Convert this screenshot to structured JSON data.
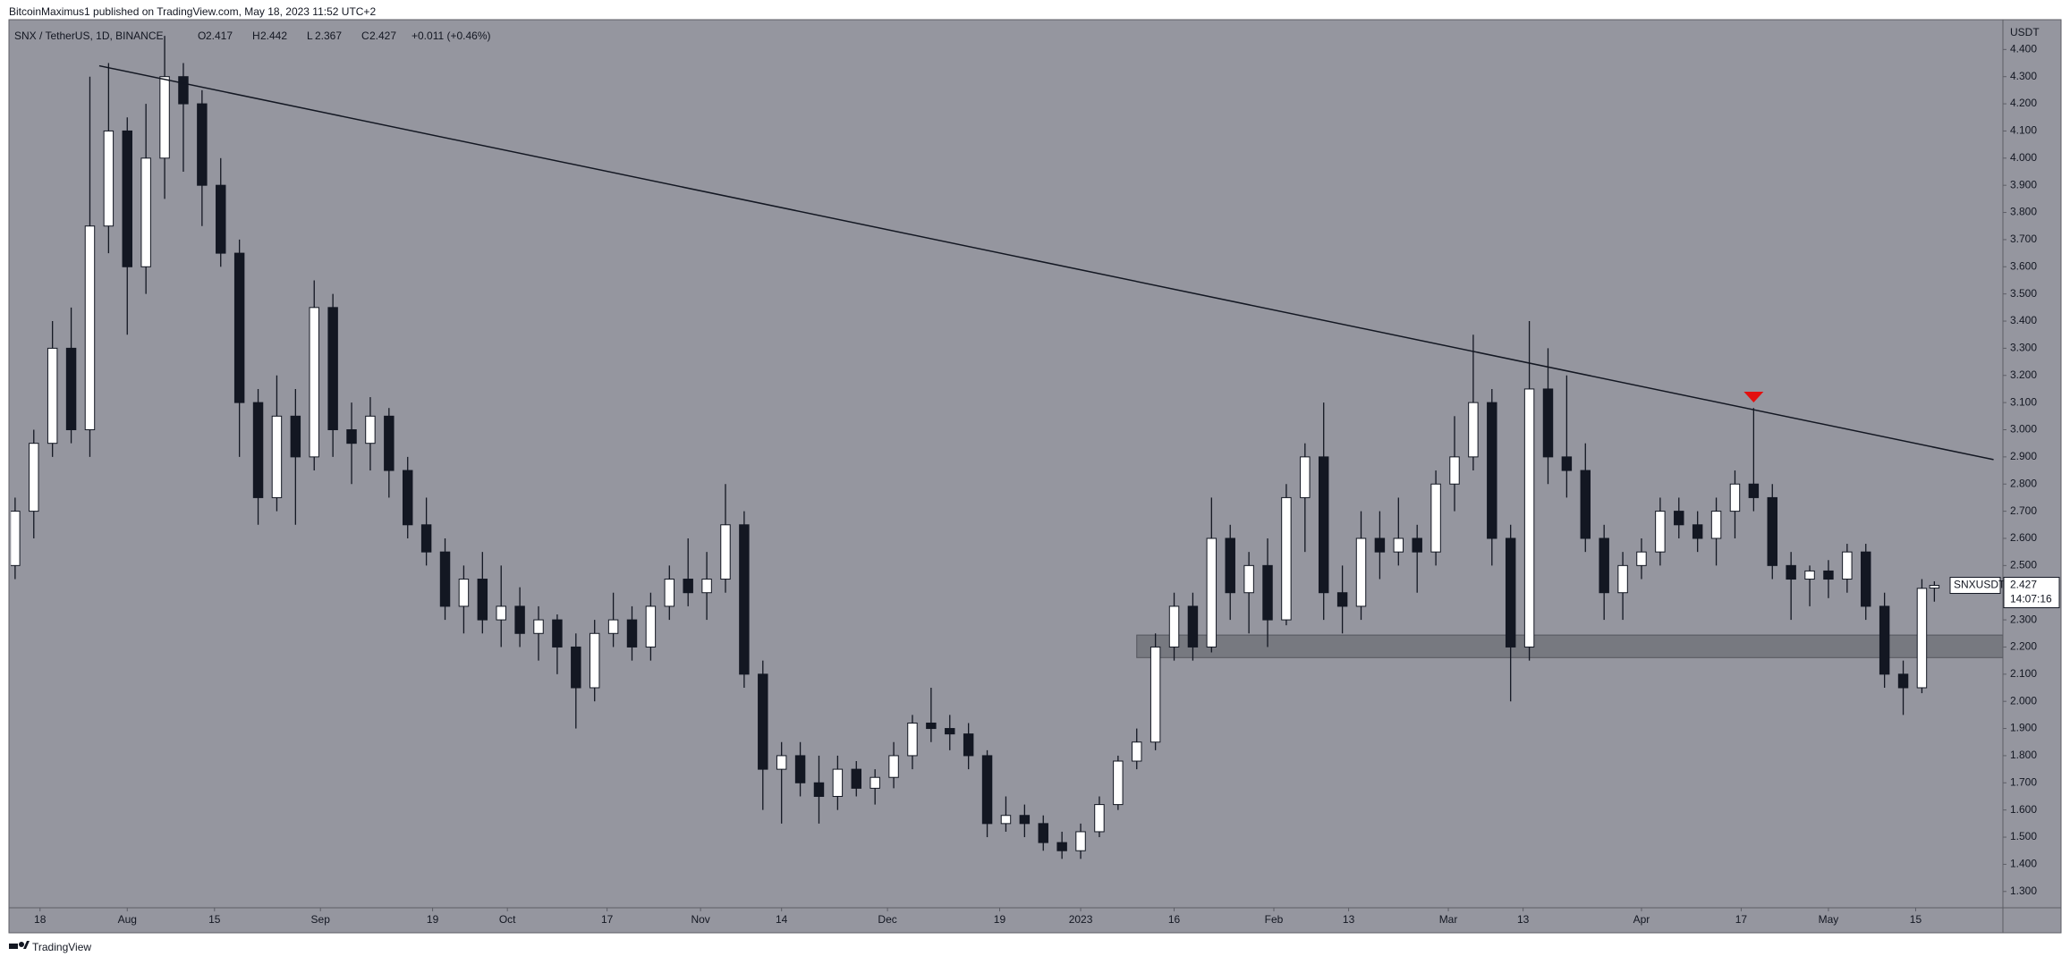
{
  "header": {
    "publisher": "BitcoinMaximus1 published on TradingView.com, May 18, 2023 11:52 UTC+2"
  },
  "footer": {
    "brand": "TradingView"
  },
  "chart_data": {
    "type": "candlestick",
    "title": "SNX / TetherUS, 1D, BINANCE",
    "ylabel": "USDT",
    "legend_values": [
      {
        "label": "O",
        "value": 2.417
      },
      {
        "label": "H",
        "value": 2.442
      },
      {
        "label": "L",
        "value": 2.367
      },
      {
        "label": "C",
        "value": 2.427
      }
    ],
    "change_label": "+0.011 (+0.46%)",
    "price_tag": {
      "symbol": "SNXUSDT",
      "value": 2.427,
      "countdown": "14:07:16"
    },
    "up_color": "#ffffff",
    "down_color": "#131722",
    "background": "#95969f",
    "grid": false,
    "x": [
      -4,
      -1,
      2,
      5,
      8,
      11,
      14,
      17,
      20,
      23,
      26,
      29,
      32,
      35,
      38,
      41,
      44,
      47,
      50,
      53,
      56,
      59,
      62,
      65,
      68,
      71,
      74,
      77,
      80,
      83,
      86,
      89,
      92,
      95,
      98,
      101,
      104,
      107,
      110,
      113,
      116,
      119,
      122,
      125,
      128,
      131,
      134,
      137,
      140,
      143,
      146,
      149,
      152,
      155,
      158,
      161,
      164,
      167,
      170,
      173,
      176,
      179,
      182,
      185,
      188,
      191,
      194,
      197,
      200,
      203,
      206,
      209,
      212,
      215,
      218,
      221,
      224,
      227,
      230,
      233,
      236,
      239,
      242,
      245,
      248,
      251,
      254,
      257,
      260,
      263,
      266,
      269,
      272,
      275,
      278,
      281,
      284,
      287,
      290,
      293,
      296,
      299,
      302,
      304
    ],
    "open": [
      2.5,
      2.7,
      2.95,
      3.3,
      3.0,
      3.75,
      4.1,
      3.6,
      4.0,
      4.3,
      4.2,
      3.9,
      3.65,
      3.1,
      2.75,
      3.05,
      2.9,
      3.45,
      3.0,
      2.95,
      3.05,
      2.85,
      2.65,
      2.55,
      2.35,
      2.45,
      2.3,
      2.35,
      2.25,
      2.3,
      2.2,
      2.05,
      2.25,
      2.3,
      2.2,
      2.35,
      2.45,
      2.4,
      2.45,
      2.65,
      2.1,
      1.75,
      1.8,
      1.7,
      1.65,
      1.75,
      1.68,
      1.72,
      1.8,
      1.92,
      1.9,
      1.88,
      1.8,
      1.55,
      1.58,
      1.55,
      1.48,
      1.45,
      1.52,
      1.62,
      1.78,
      1.85,
      2.2,
      2.35,
      2.2,
      2.6,
      2.4,
      2.5,
      2.3,
      2.75,
      2.9,
      2.4,
      2.35,
      2.6,
      2.55,
      2.6,
      2.55,
      2.8,
      2.9,
      3.1,
      2.6,
      2.2,
      3.15,
      2.9,
      2.85,
      2.6,
      2.4,
      2.5,
      2.55,
      2.7,
      2.65,
      2.6,
      2.7,
      2.8,
      2.75,
      2.5,
      2.45,
      2.48,
      2.45,
      2.55,
      2.35,
      2.1,
      2.05,
      2.417
    ],
    "high": [
      2.75,
      3.0,
      3.4,
      3.45,
      4.3,
      4.35,
      4.15,
      4.2,
      4.45,
      4.35,
      4.25,
      4.0,
      3.7,
      3.15,
      3.2,
      3.15,
      3.55,
      3.5,
      3.1,
      3.12,
      3.08,
      2.9,
      2.75,
      2.6,
      2.5,
      2.55,
      2.5,
      2.42,
      2.35,
      2.32,
      2.25,
      2.3,
      2.4,
      2.35,
      2.4,
      2.5,
      2.6,
      2.55,
      2.8,
      2.7,
      2.15,
      1.85,
      1.85,
      1.8,
      1.8,
      1.78,
      1.75,
      1.85,
      1.95,
      2.05,
      1.95,
      1.92,
      1.82,
      1.65,
      1.62,
      1.58,
      1.52,
      1.55,
      1.65,
      1.8,
      1.9,
      2.25,
      2.4,
      2.4,
      2.75,
      2.65,
      2.55,
      2.6,
      2.8,
      2.95,
      3.1,
      2.5,
      2.7,
      2.7,
      2.75,
      2.65,
      2.85,
      3.05,
      3.35,
      3.15,
      2.65,
      3.4,
      3.3,
      3.2,
      2.95,
      2.65,
      2.55,
      2.6,
      2.75,
      2.75,
      2.7,
      2.75,
      2.85,
      3.08,
      2.8,
      2.55,
      2.5,
      2.52,
      2.58,
      2.58,
      2.4,
      2.15,
      2.45,
      2.442
    ],
    "low": [
      2.45,
      2.6,
      2.9,
      2.95,
      2.9,
      3.65,
      3.35,
      3.5,
      3.85,
      3.95,
      3.75,
      3.6,
      2.9,
      2.65,
      2.7,
      2.65,
      2.85,
      2.9,
      2.8,
      2.85,
      2.75,
      2.6,
      2.5,
      2.3,
      2.25,
      2.25,
      2.2,
      2.2,
      2.15,
      2.1,
      1.9,
      2.0,
      2.2,
      2.15,
      2.15,
      2.3,
      2.35,
      2.3,
      2.4,
      2.05,
      1.6,
      1.55,
      1.65,
      1.55,
      1.6,
      1.65,
      1.62,
      1.68,
      1.75,
      1.85,
      1.82,
      1.75,
      1.5,
      1.52,
      1.5,
      1.45,
      1.42,
      1.42,
      1.5,
      1.6,
      1.75,
      1.82,
      2.15,
      2.15,
      2.18,
      2.3,
      2.25,
      2.2,
      2.28,
      2.55,
      2.3,
      2.25,
      2.3,
      2.45,
      2.5,
      2.4,
      2.5,
      2.7,
      2.85,
      2.5,
      2.0,
      2.15,
      2.8,
      2.75,
      2.55,
      2.3,
      2.3,
      2.45,
      2.5,
      2.6,
      2.55,
      2.5,
      2.6,
      2.7,
      2.45,
      2.3,
      2.35,
      2.38,
      2.4,
      2.3,
      2.05,
      1.95,
      2.03,
      2.367
    ],
    "close": [
      2.7,
      2.95,
      3.3,
      3.0,
      3.75,
      4.1,
      3.6,
      4.0,
      4.3,
      4.2,
      3.9,
      3.65,
      3.1,
      2.75,
      3.05,
      2.9,
      3.45,
      3.0,
      2.95,
      3.05,
      2.85,
      2.65,
      2.55,
      2.35,
      2.45,
      2.3,
      2.35,
      2.25,
      2.3,
      2.2,
      2.05,
      2.25,
      2.3,
      2.2,
      2.35,
      2.45,
      2.4,
      2.45,
      2.65,
      2.1,
      1.75,
      1.8,
      1.7,
      1.65,
      1.75,
      1.68,
      1.72,
      1.8,
      1.92,
      1.9,
      1.88,
      1.8,
      1.55,
      1.58,
      1.55,
      1.48,
      1.45,
      1.52,
      1.62,
      1.78,
      1.85,
      2.2,
      2.35,
      2.2,
      2.6,
      2.4,
      2.5,
      2.3,
      2.75,
      2.9,
      2.4,
      2.35,
      2.6,
      2.55,
      2.6,
      2.55,
      2.8,
      2.9,
      3.1,
      2.6,
      2.2,
      3.15,
      2.9,
      2.85,
      2.6,
      2.4,
      2.5,
      2.55,
      2.7,
      2.65,
      2.6,
      2.7,
      2.8,
      2.75,
      2.5,
      2.45,
      2.48,
      2.45,
      2.55,
      2.35,
      2.1,
      2.05,
      2.416,
      2.427
    ],
    "xlim": [
      -4.7,
      315
    ],
    "xticks": [
      {
        "value": 0,
        "label": "18"
      },
      {
        "value": 14,
        "label": "Aug"
      },
      {
        "value": 28,
        "label": "15"
      },
      {
        "value": 45,
        "label": "Sep"
      },
      {
        "value": 63,
        "label": "19"
      },
      {
        "value": 75,
        "label": "Oct"
      },
      {
        "value": 91,
        "label": "17"
      },
      {
        "value": 106,
        "label": "Nov"
      },
      {
        "value": 119,
        "label": "14"
      },
      {
        "value": 136,
        "label": "Dec"
      },
      {
        "value": 154,
        "label": "19"
      },
      {
        "value": 167,
        "label": "2023"
      },
      {
        "value": 182,
        "label": "16"
      },
      {
        "value": 198,
        "label": "Feb"
      },
      {
        "value": 210,
        "label": "13"
      },
      {
        "value": 226,
        "label": "Mar"
      },
      {
        "value": 238,
        "label": "13"
      },
      {
        "value": 257,
        "label": "Apr"
      },
      {
        "value": 273,
        "label": "17"
      },
      {
        "value": 287,
        "label": "May"
      },
      {
        "value": 301,
        "label": "15"
      }
    ],
    "ylim": [
      1.24,
      4.49
    ],
    "yticks": [
      {
        "value": 1.3,
        "label": "1.300"
      },
      {
        "value": 1.4,
        "label": "1.400"
      },
      {
        "value": 1.5,
        "label": "1.500"
      },
      {
        "value": 1.6,
        "label": "1.600"
      },
      {
        "value": 1.7,
        "label": "1.700"
      },
      {
        "value": 1.8,
        "label": "1.800"
      },
      {
        "value": 1.9,
        "label": "1.900"
      },
      {
        "value": 2.0,
        "label": "2.000"
      },
      {
        "value": 2.1,
        "label": "2.100"
      },
      {
        "value": 2.2,
        "label": "2.200"
      },
      {
        "value": 2.3,
        "label": "2.300"
      },
      {
        "value": 2.4,
        "label": "2.400"
      },
      {
        "value": 2.5,
        "label": "2.500"
      },
      {
        "value": 2.6,
        "label": "2.600"
      },
      {
        "value": 2.7,
        "label": "2.700"
      },
      {
        "value": 2.8,
        "label": "2.800"
      },
      {
        "value": 2.9,
        "label": "2.900"
      },
      {
        "value": 3.0,
        "label": "3.000"
      },
      {
        "value": 3.1,
        "label": "3.100"
      },
      {
        "value": 3.2,
        "label": "3.200"
      },
      {
        "value": 3.3,
        "label": "3.300"
      },
      {
        "value": 3.4,
        "label": "3.400"
      },
      {
        "value": 3.5,
        "label": "3.500"
      },
      {
        "value": 3.6,
        "label": "3.600"
      },
      {
        "value": 3.7,
        "label": "3.700"
      },
      {
        "value": 3.8,
        "label": "3.800"
      },
      {
        "value": 3.9,
        "label": "3.900"
      },
      {
        "value": 4.0,
        "label": "4.000"
      },
      {
        "value": 4.1,
        "label": "4.100"
      },
      {
        "value": 4.2,
        "label": "4.200"
      },
      {
        "value": 4.3,
        "label": "4.300"
      },
      {
        "value": 4.4,
        "label": "4.400"
      }
    ],
    "trendline": {
      "x": [
        9.5,
        313.5
      ],
      "y": [
        4.34,
        2.89
      ],
      "color": "#131722"
    },
    "support_zone": {
      "x": [
        176,
        315
      ],
      "y": [
        2.161,
        2.244
      ],
      "color": "#6b6c74"
    },
    "marker": {
      "x": 275,
      "y": 3.12,
      "color": "#e3100f"
    }
  }
}
